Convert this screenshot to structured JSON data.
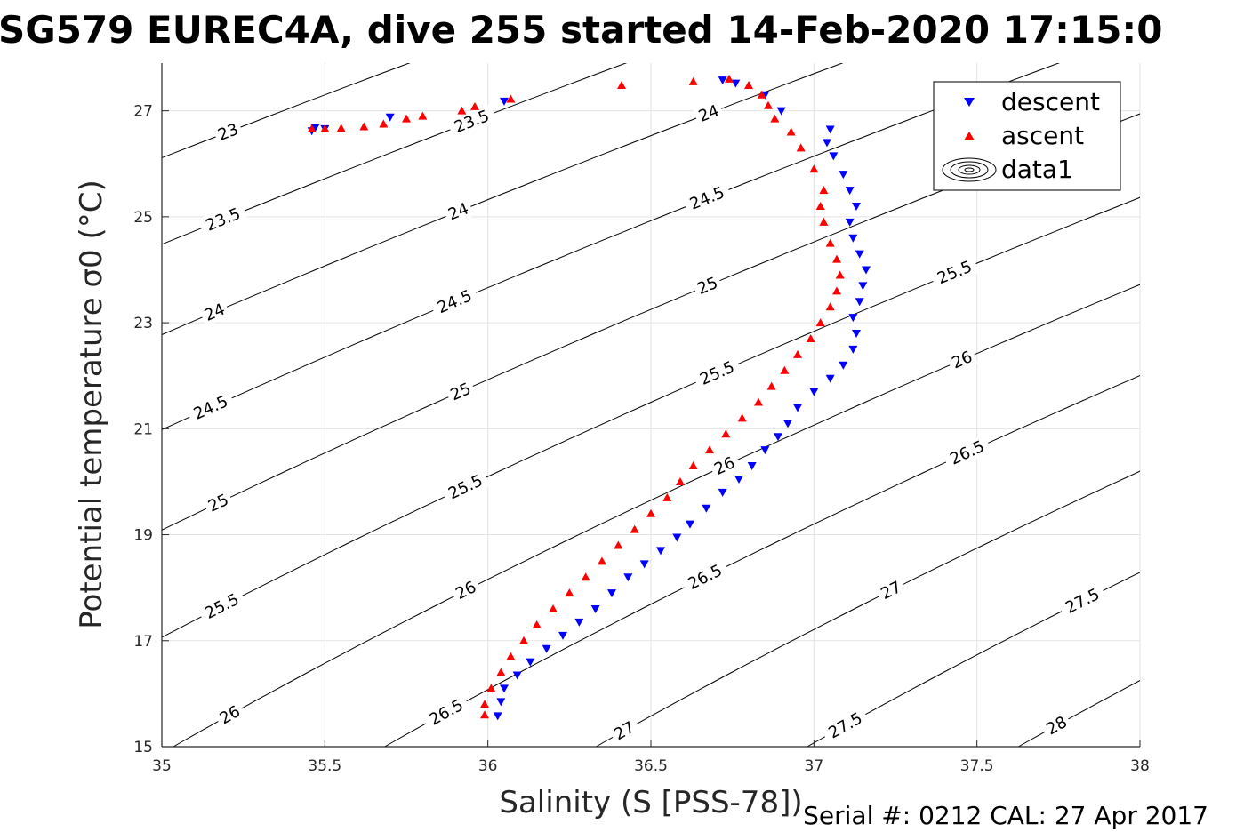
{
  "title": "SG579 EUREC4A, dive 255 started 14-Feb-2020 17:15:0",
  "footer": "Serial #: 0212  CAL: 27 Apr 2017",
  "chart_data": {
    "type": "scatter",
    "title": "SG579 EUREC4A, dive 255 started 14-Feb-2020 17:15:0",
    "xlabel": "Salinity (S [PSS-78])",
    "ylabel": "Potential temperature σ0 (°C)",
    "xlim": [
      35,
      38
    ],
    "ylim": [
      15,
      27.9
    ],
    "xticks": [
      35,
      35.5,
      36,
      36.5,
      37,
      37.5,
      38
    ],
    "yticks": [
      15,
      17,
      19,
      21,
      23,
      25,
      27
    ],
    "grid": true,
    "legend_position": "top-right",
    "legend": [
      "descent",
      "ascent",
      "data1"
    ],
    "series": [
      {
        "name": "descent",
        "marker": "triangle-down",
        "color": "#0000ff",
        "points": [
          [
            35.46,
            26.62
          ],
          [
            35.47,
            26.68
          ],
          [
            35.5,
            26.66
          ],
          [
            35.7,
            26.88
          ],
          [
            36.05,
            27.18
          ],
          [
            36.72,
            27.58
          ],
          [
            36.76,
            27.52
          ],
          [
            36.85,
            27.3
          ],
          [
            36.9,
            27.0
          ],
          [
            37.05,
            26.65
          ],
          [
            37.04,
            26.4
          ],
          [
            37.06,
            26.15
          ],
          [
            37.09,
            25.8
          ],
          [
            37.11,
            25.5
          ],
          [
            37.13,
            25.2
          ],
          [
            37.11,
            24.9
          ],
          [
            37.12,
            24.6
          ],
          [
            37.14,
            24.3
          ],
          [
            37.16,
            24.0
          ],
          [
            37.15,
            23.7
          ],
          [
            37.14,
            23.4
          ],
          [
            37.12,
            23.1
          ],
          [
            37.13,
            22.8
          ],
          [
            37.12,
            22.5
          ],
          [
            37.09,
            22.2
          ],
          [
            37.05,
            21.95
          ],
          [
            37.0,
            21.7
          ],
          [
            36.95,
            21.4
          ],
          [
            36.92,
            21.1
          ],
          [
            36.89,
            20.85
          ],
          [
            36.85,
            20.6
          ],
          [
            36.81,
            20.3
          ],
          [
            36.77,
            20.05
          ],
          [
            36.72,
            19.8
          ],
          [
            36.67,
            19.5
          ],
          [
            36.62,
            19.2
          ],
          [
            36.58,
            18.95
          ],
          [
            36.53,
            18.7
          ],
          [
            36.48,
            18.45
          ],
          [
            36.43,
            18.2
          ],
          [
            36.38,
            17.9
          ],
          [
            36.33,
            17.6
          ],
          [
            36.28,
            17.35
          ],
          [
            36.23,
            17.1
          ],
          [
            36.18,
            16.85
          ],
          [
            36.13,
            16.6
          ],
          [
            36.09,
            16.35
          ],
          [
            36.05,
            16.1
          ],
          [
            36.04,
            15.85
          ],
          [
            36.03,
            15.58
          ]
        ]
      },
      {
        "name": "ascent",
        "marker": "triangle-up",
        "color": "#ff0000",
        "points": [
          [
            35.46,
            26.66
          ],
          [
            35.5,
            26.66
          ],
          [
            35.55,
            26.67
          ],
          [
            35.62,
            26.7
          ],
          [
            35.68,
            26.75
          ],
          [
            35.75,
            26.85
          ],
          [
            35.8,
            26.9
          ],
          [
            35.92,
            27.0
          ],
          [
            35.96,
            27.08
          ],
          [
            36.07,
            27.22
          ],
          [
            36.41,
            27.48
          ],
          [
            36.63,
            27.55
          ],
          [
            36.74,
            27.6
          ],
          [
            36.8,
            27.48
          ],
          [
            36.84,
            27.3
          ],
          [
            36.86,
            27.1
          ],
          [
            36.88,
            26.85
          ],
          [
            36.93,
            26.6
          ],
          [
            36.96,
            26.3
          ],
          [
            37.0,
            25.9
          ],
          [
            37.03,
            25.5
          ],
          [
            37.02,
            25.2
          ],
          [
            37.03,
            24.9
          ],
          [
            37.05,
            24.5
          ],
          [
            37.07,
            24.2
          ],
          [
            37.08,
            23.9
          ],
          [
            37.07,
            23.6
          ],
          [
            37.05,
            23.3
          ],
          [
            37.02,
            23.0
          ],
          [
            36.99,
            22.7
          ],
          [
            36.95,
            22.4
          ],
          [
            36.91,
            22.1
          ],
          [
            36.87,
            21.8
          ],
          [
            36.83,
            21.5
          ],
          [
            36.78,
            21.2
          ],
          [
            36.73,
            20.9
          ],
          [
            36.68,
            20.6
          ],
          [
            36.63,
            20.3
          ],
          [
            36.59,
            20.0
          ],
          [
            36.55,
            19.7
          ],
          [
            36.5,
            19.4
          ],
          [
            36.45,
            19.1
          ],
          [
            36.4,
            18.8
          ],
          [
            36.35,
            18.5
          ],
          [
            36.3,
            18.2
          ],
          [
            36.25,
            17.9
          ],
          [
            36.2,
            17.6
          ],
          [
            36.15,
            17.3
          ],
          [
            36.11,
            17.0
          ],
          [
            36.07,
            16.7
          ],
          [
            36.04,
            16.4
          ],
          [
            36.01,
            16.1
          ],
          [
            35.99,
            15.8
          ],
          [
            35.99,
            15.6
          ]
        ]
      }
    ],
    "density_contours": {
      "levels": [
        23,
        23.5,
        24,
        24.5,
        25,
        25.5,
        26,
        26.5,
        27,
        27.5,
        28
      ],
      "color": "#000000",
      "labels": [
        {
          "text": "23",
          "s": 35.2,
          "t": 26.6
        },
        {
          "text": "23",
          "s": 37.43,
          "t": 25.6
        },
        {
          "text": "23.5",
          "s": 35.2,
          "t": 24.95
        },
        {
          "text": "23.5",
          "s": 35.97,
          "t": 26.8
        },
        {
          "text": "24",
          "s": 35.16,
          "t": 23.2
        },
        {
          "text": "24",
          "s": 35.91,
          "t": 25.1
        },
        {
          "text": "24",
          "s": 36.69,
          "t": 26.95
        },
        {
          "text": "24.5",
          "s": 35.17,
          "t": 21.4
        },
        {
          "text": "24.5",
          "s": 35.91,
          "t": 23.4
        },
        {
          "text": "24.5",
          "s": 36.7,
          "t": 25.35
        },
        {
          "text": "25",
          "s": 35.18,
          "t": 19.6
        },
        {
          "text": "25",
          "s": 35.93,
          "t": 21.7
        },
        {
          "text": "25",
          "s": 36.71,
          "t": 23.7
        },
        {
          "text": "25.5",
          "s": 35.19,
          "t": 17.65
        },
        {
          "text": "25.5",
          "s": 35.95,
          "t": 19.9
        },
        {
          "text": "25.5",
          "s": 36.7,
          "t": 22.05
        },
        {
          "text": "25.5",
          "s": 37.41,
          "t": 23.95
        },
        {
          "text": "26",
          "s": 35.2,
          "t": 15.6
        },
        {
          "text": "26",
          "s": 35.97,
          "t": 17.95
        },
        {
          "text": "26",
          "s": 36.69,
          "t": 20.3
        },
        {
          "text": "26",
          "s": 37.43,
          "t": 22.3
        },
        {
          "text": "26.5",
          "s": 35.93,
          "t": 15.65
        },
        {
          "text": "26.5",
          "s": 36.64,
          "t": 18.2
        },
        {
          "text": "26.5",
          "s": 37.39,
          "t": 20.55
        },
        {
          "text": "27",
          "s": 36.42,
          "t": 15.3
        },
        {
          "text": "27",
          "s": 37.12,
          "t": 17.95
        },
        {
          "text": "27",
          "s": 37.83,
          "t": 20.45
        },
        {
          "text": "27.5",
          "s": 37.09,
          "t": 15.4
        },
        {
          "text": "27.5",
          "s": 37.83,
          "t": 17.75
        },
        {
          "text": "28",
          "s": 37.74,
          "t": 15.4
        }
      ]
    }
  }
}
